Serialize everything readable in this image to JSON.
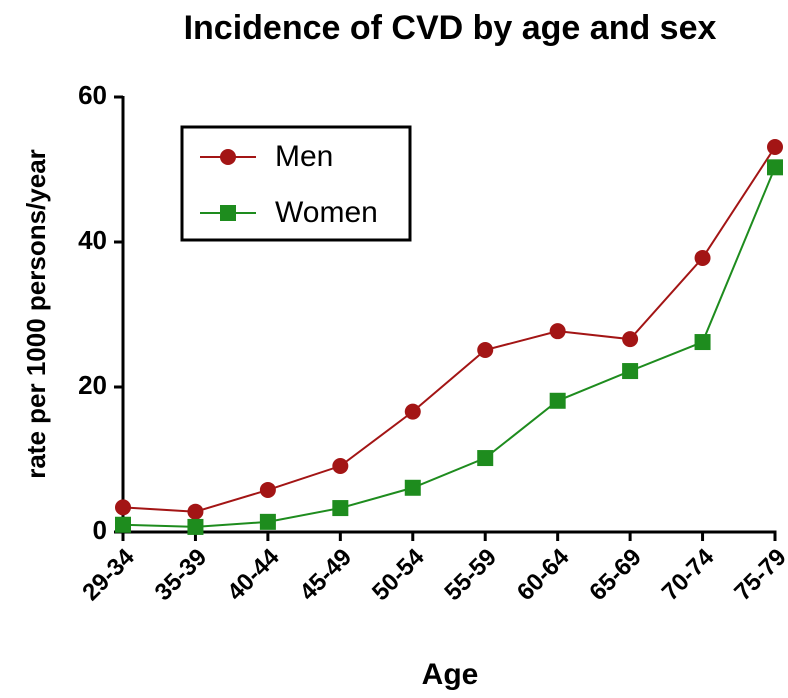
{
  "chart_data": {
    "type": "line",
    "title": "Incidence of CVD by age and sex",
    "xlabel": "Age",
    "ylabel": "rate per 1000 persons/year",
    "categories": [
      "29-34",
      "35-39",
      "40-44",
      "45-49",
      "50-54",
      "55-59",
      "60-64",
      "65-69",
      "70-74",
      "75-79"
    ],
    "series": [
      {
        "name": "Men",
        "color": "#a31515",
        "marker": "circle",
        "values": [
          3.4,
          2.8,
          5.8,
          9.1,
          16.6,
          25.1,
          27.7,
          26.6,
          37.8,
          53.1
        ]
      },
      {
        "name": "Women",
        "color": "#1e8c1e",
        "marker": "square",
        "values": [
          1.0,
          0.7,
          1.4,
          3.3,
          6.1,
          10.2,
          18.1,
          22.2,
          26.2,
          50.3
        ]
      }
    ],
    "ylim": [
      0,
      60
    ],
    "yticks": [
      0,
      20,
      40,
      60
    ],
    "legend": "upper left"
  }
}
